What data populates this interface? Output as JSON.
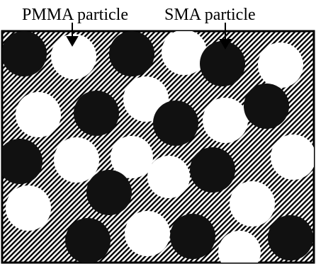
{
  "labels": [
    "PMMA particle",
    "SMA particle"
  ]
}
